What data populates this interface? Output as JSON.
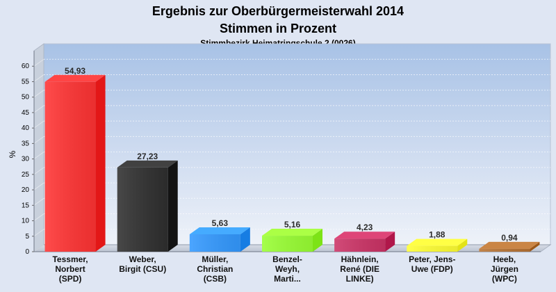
{
  "chart_data": {
    "type": "bar",
    "title": "Ergebnis zur Oberbürgermeisterwahl 2014",
    "title_line2": "Stimmen in Prozent",
    "subtitle": "Stimmbezirk Heimatringschule 2 (0026)",
    "xlabel": "",
    "ylabel": "%",
    "ylim": [
      0,
      65
    ],
    "yticks": [
      0,
      5,
      10,
      15,
      20,
      25,
      30,
      35,
      40,
      45,
      50,
      55,
      60
    ],
    "grid": true,
    "categories": [
      "Tessmer, Norbert (SPD)",
      "Weber, Birgit (CSU)",
      "Müller, Christian (CSB)",
      "Benzel-Weyh, Marti...",
      "Hähnlein, René (DIE LINKE)",
      "Peter, Jens-Uwe (FDP)",
      "Heeb, Jürgen (WPC)"
    ],
    "category_lines": [
      [
        "Tessmer,",
        "Norbert",
        "(SPD)"
      ],
      [
        "Weber,",
        "Birgit (CSU)"
      ],
      [
        "Müller,",
        "Christian",
        "(CSB)"
      ],
      [
        "Benzel-",
        "Weyh,",
        "Marti..."
      ],
      [
        "Hähnlein,",
        "René (DIE",
        "LINKE)"
      ],
      [
        "Peter, Jens-",
        "Uwe (FDP)"
      ],
      [
        "Heeb,",
        "Jürgen",
        "(WPC)"
      ]
    ],
    "values": [
      54.93,
      27.23,
      5.63,
      5.16,
      4.23,
      1.88,
      0.94
    ],
    "value_labels": [
      "54,93",
      "27,23",
      "5,63",
      "5,16",
      "4,23",
      "1,88",
      "0,94"
    ],
    "colors": [
      "#ff3333",
      "#2f2f2f",
      "#3399ff",
      "#99ff33",
      "#cc3366",
      "#ffff33",
      "#b87333"
    ]
  }
}
